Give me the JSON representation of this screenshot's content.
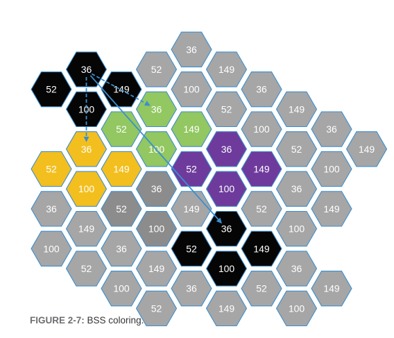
{
  "colors": {
    "gray": "#a6a6a6",
    "dark_gray": "#8c8c8c",
    "black": "#050505",
    "green": "#92c761",
    "yellow": "#f3bf1e",
    "purple": "#6e3b9c",
    "border": "#3a8fd0",
    "arrow": "#3a8fd0"
  },
  "cells": [
    {
      "label": "36",
      "color": "gray",
      "col": 4,
      "row": -1
    },
    {
      "label": "52",
      "color": "gray",
      "col": 3,
      "row": 0
    },
    {
      "label": "149",
      "color": "gray",
      "col": 5,
      "row": 0
    },
    {
      "label": "100",
      "color": "gray",
      "col": 4,
      "row": 1
    },
    {
      "label": "36",
      "color": "gray",
      "col": 6,
      "row": 1
    },
    {
      "label": "52",
      "color": "gray",
      "col": 5,
      "row": 2
    },
    {
      "label": "149",
      "color": "gray",
      "col": 7,
      "row": 2
    },
    {
      "label": "100",
      "color": "gray",
      "col": 6,
      "row": 3
    },
    {
      "label": "36",
      "color": "gray",
      "col": 8,
      "row": 3
    },
    {
      "label": "52",
      "color": "gray",
      "col": 7,
      "row": 4
    },
    {
      "label": "149",
      "color": "gray",
      "col": 9,
      "row": 4
    },
    {
      "label": "100",
      "color": "gray",
      "col": 8,
      "row": 5
    },
    {
      "label": "36",
      "color": "black",
      "col": 1,
      "row": 0
    },
    {
      "label": "52",
      "color": "black",
      "col": 0,
      "row": 1
    },
    {
      "label": "149",
      "color": "black",
      "col": 2,
      "row": 1
    },
    {
      "label": "100",
      "color": "black",
      "col": 1,
      "row": 2
    },
    {
      "label": "36",
      "color": "green",
      "col": 3,
      "row": 2
    },
    {
      "label": "52",
      "color": "green",
      "col": 2,
      "row": 3
    },
    {
      "label": "149",
      "color": "green",
      "col": 4,
      "row": 3
    },
    {
      "label": "100",
      "color": "green",
      "col": 3,
      "row": 4
    },
    {
      "label": "36",
      "color": "yellow",
      "col": 1,
      "row": 4
    },
    {
      "label": "52",
      "color": "yellow",
      "col": 0,
      "row": 5
    },
    {
      "label": "149",
      "color": "yellow",
      "col": 2,
      "row": 5
    },
    {
      "label": "100",
      "color": "yellow",
      "col": 1,
      "row": 6
    },
    {
      "label": "36",
      "color": "purple",
      "col": 5,
      "row": 4
    },
    {
      "label": "52",
      "color": "purple",
      "col": 4,
      "row": 5
    },
    {
      "label": "149",
      "color": "purple",
      "col": 6,
      "row": 5
    },
    {
      "label": "100",
      "color": "purple",
      "col": 5,
      "row": 6
    },
    {
      "label": "36",
      "color": "dark_gray",
      "col": 3,
      "row": 6
    },
    {
      "label": "52",
      "color": "dark_gray",
      "col": 2,
      "row": 7
    },
    {
      "label": "149",
      "color": "gray",
      "col": 4,
      "row": 7
    },
    {
      "label": "100",
      "color": "dark_gray",
      "col": 3,
      "row": 8
    },
    {
      "label": "36",
      "color": "gray",
      "col": 7,
      "row": 6
    },
    {
      "label": "52",
      "color": "gray",
      "col": 6,
      "row": 7
    },
    {
      "label": "149",
      "color": "gray",
      "col": 8,
      "row": 7
    },
    {
      "label": "100",
      "color": "gray",
      "col": 7,
      "row": 8
    },
    {
      "label": "36",
      "color": "gray",
      "col": 0,
      "row": 7
    },
    {
      "label": "52",
      "color": "gray",
      "col": 1,
      "row": 10
    },
    {
      "label": "149",
      "color": "gray",
      "col": 1,
      "row": 8
    },
    {
      "label": "100",
      "color": "gray",
      "col": 0,
      "row": 9
    },
    {
      "label": "36",
      "color": "gray",
      "col": 2,
      "row": 9
    },
    {
      "label": "52",
      "color": "gray",
      "col": 3,
      "row": 12
    },
    {
      "label": "149",
      "color": "gray",
      "col": 3,
      "row": 10
    },
    {
      "label": "100",
      "color": "gray",
      "col": 2,
      "row": 11
    },
    {
      "label": "36",
      "color": "black",
      "col": 5,
      "row": 8
    },
    {
      "label": "52",
      "color": "black",
      "col": 4,
      "row": 9
    },
    {
      "label": "149",
      "color": "black",
      "col": 6,
      "row": 9
    },
    {
      "label": "100",
      "color": "black",
      "col": 5,
      "row": 10
    },
    {
      "label": "36",
      "color": "gray",
      "col": 4,
      "row": 11
    },
    {
      "label": "52",
      "color": "gray",
      "col": 6,
      "row": 11
    },
    {
      "label": "149",
      "color": "gray",
      "col": 5,
      "row": 12
    },
    {
      "label": "36",
      "color": "gray",
      "col": 7,
      "row": 10
    },
    {
      "label": "149",
      "color": "gray",
      "col": 8,
      "row": 11
    },
    {
      "label": "100",
      "color": "gray",
      "col": 7,
      "row": 12
    }
  ],
  "arrows": [
    {
      "from": {
        "col": 1,
        "row": 0
      },
      "to": {
        "col": 3,
        "row": 2
      },
      "style": "dashed"
    },
    {
      "from": {
        "col": 1,
        "row": 0
      },
      "to": {
        "col": 1,
        "row": 4
      },
      "style": "dashed"
    },
    {
      "from": {
        "col": 1,
        "row": 0
      },
      "to": {
        "col": 5,
        "row": 8
      },
      "style": "solid"
    }
  ],
  "caption": {
    "label": "FIGURE 2-7:",
    "text": "BSS coloring."
  }
}
